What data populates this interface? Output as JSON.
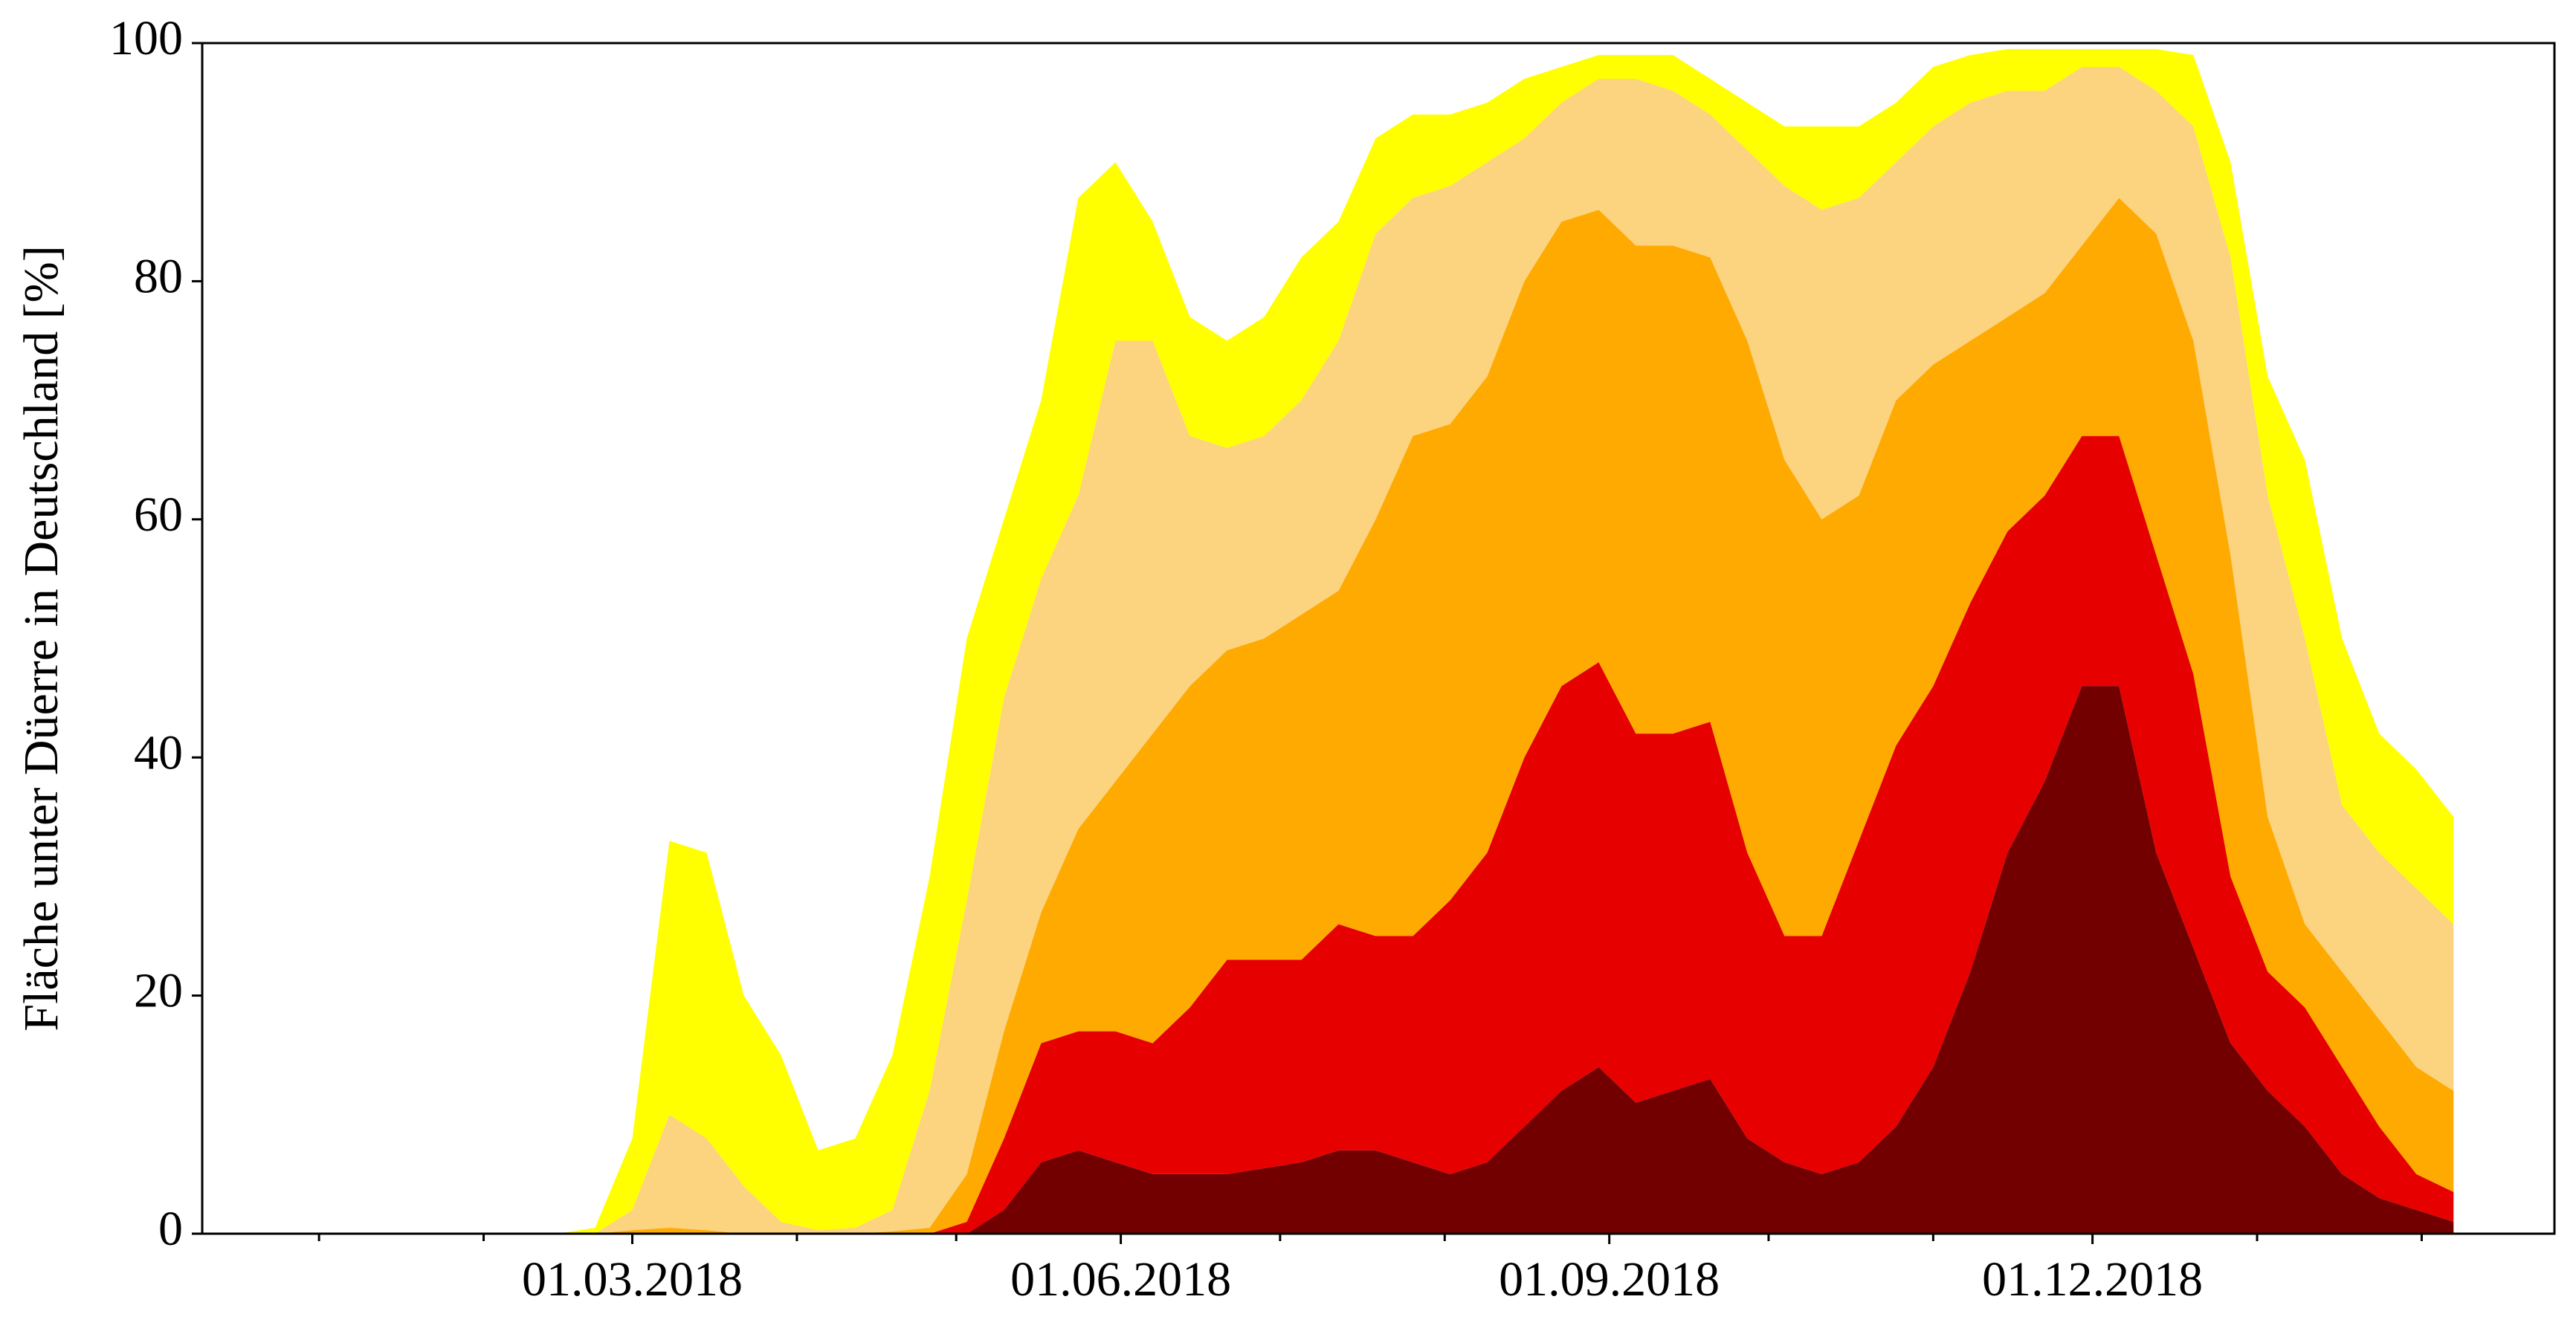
{
  "chart_data": {
    "type": "stacked_area",
    "ylabel": "Fläche unter Düerre in Deutschland [%]",
    "x": [
      "2018-02-15",
      "2018-02-22",
      "2018-03-01",
      "2018-03-08",
      "2018-03-15",
      "2018-03-22",
      "2018-03-29",
      "2018-04-05",
      "2018-04-12",
      "2018-04-19",
      "2018-04-26",
      "2018-05-03",
      "2018-05-10",
      "2018-05-17",
      "2018-05-24",
      "2018-05-31",
      "2018-06-07",
      "2018-06-14",
      "2018-06-21",
      "2018-06-28",
      "2018-07-05",
      "2018-07-12",
      "2018-07-19",
      "2018-07-26",
      "2018-08-02",
      "2018-08-09",
      "2018-08-16",
      "2018-08-23",
      "2018-08-30",
      "2018-09-06",
      "2018-09-13",
      "2018-09-20",
      "2018-09-27",
      "2018-10-04",
      "2018-10-11",
      "2018-10-18",
      "2018-10-25",
      "2018-11-01",
      "2018-11-08",
      "2018-11-15",
      "2018-11-22",
      "2018-11-29",
      "2018-12-06",
      "2018-12-13",
      "2018-12-20",
      "2018-12-27",
      "2019-01-03",
      "2019-01-10",
      "2019-01-17",
      "2019-01-24",
      "2019-01-31",
      "2019-02-07"
    ],
    "series": [
      {
        "color": "#730000",
        "values": [
          0,
          0,
          0,
          0,
          0,
          0,
          0,
          0,
          0,
          0,
          0,
          0,
          2,
          6,
          7,
          6,
          5,
          5,
          5,
          5.5,
          6,
          7,
          7,
          6,
          5,
          6,
          9,
          12,
          14,
          11,
          12,
          13,
          8,
          6,
          5,
          6,
          9,
          14,
          22,
          32,
          38,
          46,
          46,
          32,
          24,
          16,
          12,
          9,
          5,
          3,
          2,
          1
        ]
      },
      {
        "color": "#e60000",
        "values": [
          0,
          0,
          0,
          0,
          0,
          0,
          0,
          0,
          0,
          0,
          0,
          1,
          6,
          10,
          10,
          11,
          11,
          14,
          18,
          17.5,
          17,
          19,
          18,
          19,
          23,
          26,
          31,
          34,
          34,
          31,
          30,
          30,
          24,
          19,
          20,
          27,
          32,
          32,
          31,
          27,
          24,
          21,
          21,
          25,
          23,
          14,
          10,
          10,
          9,
          6,
          3,
          2.5
        ]
      },
      {
        "color": "#ffaa00",
        "values": [
          0,
          0,
          0.3,
          0.5,
          0.3,
          0,
          0,
          0,
          0,
          0.2,
          0.5,
          4,
          9,
          11,
          17,
          21,
          26,
          27,
          26,
          27,
          29,
          28,
          35,
          42,
          40,
          40,
          40,
          39,
          38,
          41,
          41,
          39,
          43,
          40,
          35,
          29,
          29,
          27,
          22,
          18,
          17,
          16,
          20,
          27,
          28,
          27,
          13,
          7,
          8,
          9,
          9,
          8.5
        ]
      },
      {
        "color": "#fcd37f",
        "values": [
          0,
          0,
          1.7,
          9.5,
          7.7,
          4,
          1,
          0.3,
          0.5,
          1.8,
          11.5,
          23,
          28,
          28,
          28,
          37,
          33,
          21,
          17,
          17,
          18,
          21,
          24,
          20,
          20,
          18,
          12,
          10,
          11,
          14,
          13,
          12,
          16,
          23,
          26,
          25,
          20,
          20,
          20,
          19,
          17,
          15,
          11,
          12,
          18,
          25,
          27,
          24,
          14,
          14,
          15,
          14
        ]
      },
      {
        "color": "#ffff00",
        "values": [
          0,
          0.5,
          6,
          23,
          24,
          16,
          14,
          6.7,
          7.5,
          13,
          18,
          22,
          15,
          15,
          25,
          15,
          10,
          10,
          9,
          10,
          12,
          10,
          8,
          7,
          6,
          5,
          5,
          3,
          2,
          2,
          3,
          3,
          4,
          5,
          7,
          6,
          5,
          5,
          4,
          3.5,
          3.5,
          1.5,
          1.5,
          3.5,
          6,
          8,
          10,
          15,
          14,
          10,
          10,
          9
        ]
      }
    ],
    "xlim": [
      "2017-12-10",
      "2019-02-26"
    ],
    "xticks": [
      {
        "value": "2018-03-01",
        "label": "01.03.2018"
      },
      {
        "value": "2018-06-01",
        "label": "01.06.2018"
      },
      {
        "value": "2018-09-01",
        "label": "01.09.2018"
      },
      {
        "value": "2018-12-01",
        "label": "01.12.2018"
      }
    ],
    "xminor_ticks": [
      "2018-01-01",
      "2018-02-01",
      "2018-04-01",
      "2018-05-01",
      "2018-07-01",
      "2018-08-01",
      "2018-10-01",
      "2018-11-01",
      "2019-01-01",
      "2019-02-01"
    ],
    "ylim": [
      0,
      100
    ],
    "yticks": [
      0,
      20,
      40,
      60,
      80,
      100
    ],
    "grid": false
  }
}
